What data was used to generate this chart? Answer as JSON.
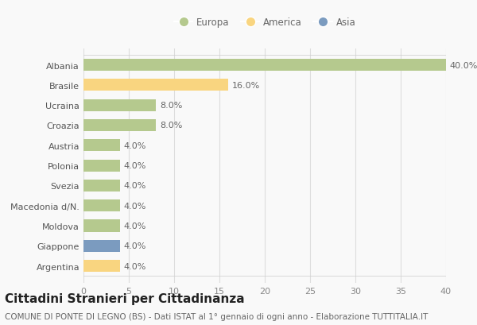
{
  "categories": [
    "Albania",
    "Brasile",
    "Ucraina",
    "Croazia",
    "Austria",
    "Polonia",
    "Svezia",
    "Macedonia d/N.",
    "Moldova",
    "Giappone",
    "Argentina"
  ],
  "values": [
    40.0,
    16.0,
    8.0,
    8.0,
    4.0,
    4.0,
    4.0,
    4.0,
    4.0,
    4.0,
    4.0
  ],
  "bar_colors": [
    "#b5c98e",
    "#f9d580",
    "#b5c98e",
    "#b5c98e",
    "#b5c98e",
    "#b5c98e",
    "#b5c98e",
    "#b5c98e",
    "#b5c98e",
    "#7b9bbf",
    "#f9d580"
  ],
  "legend_labels": [
    "Europa",
    "America",
    "Asia"
  ],
  "legend_colors": [
    "#b5c98e",
    "#f9d580",
    "#7b9bbf"
  ],
  "title": "Cittadini Stranieri per Cittadinanza",
  "subtitle": "COMUNE DI PONTE DI LEGNO (BS) - Dati ISTAT al 1° gennaio di ogni anno - Elaborazione TUTTITALIA.IT",
  "xlim": [
    0,
    40
  ],
  "xticks": [
    0,
    5,
    10,
    15,
    20,
    25,
    30,
    35,
    40
  ],
  "background_color": "#f9f9f9",
  "title_fontsize": 11,
  "subtitle_fontsize": 7.5,
  "tick_fontsize": 8,
  "label_fontsize": 8,
  "legend_fontsize": 8.5
}
